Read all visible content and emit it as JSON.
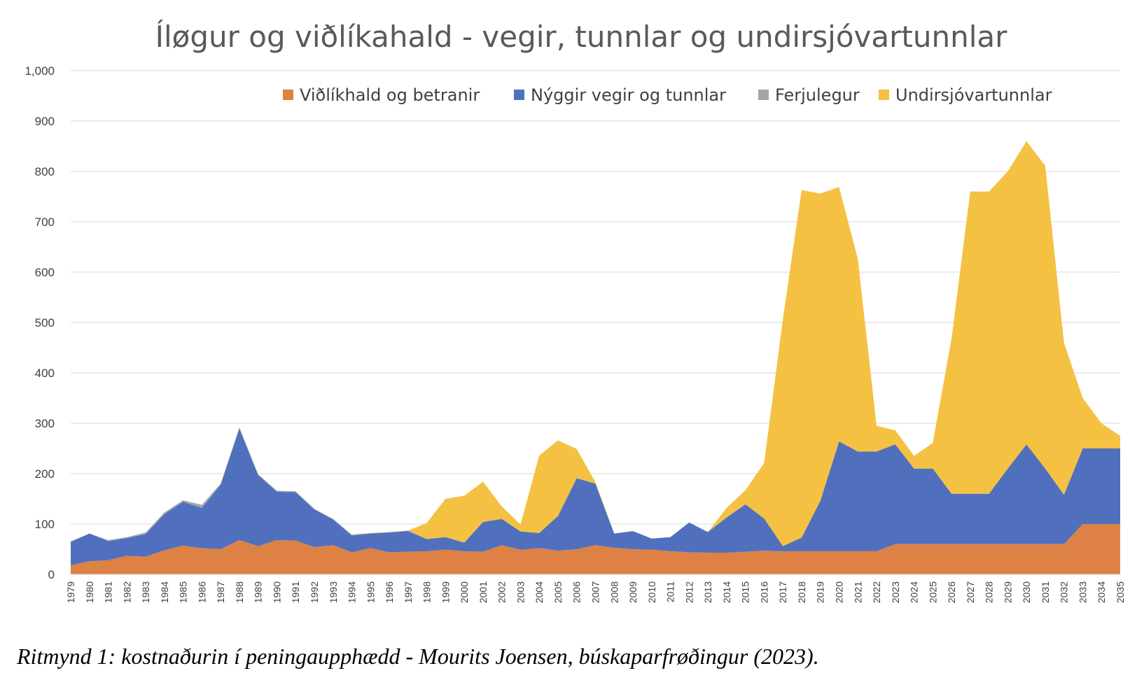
{
  "chart_data": {
    "type": "area",
    "stacked": true,
    "title": "Íløgur og viðlíkahald - vegir, tunnlar og undirsjóvartunnlar",
    "x": [
      1979,
      1980,
      1981,
      1982,
      1983,
      1984,
      1985,
      1986,
      1987,
      1988,
      1989,
      1990,
      1991,
      1992,
      1993,
      1994,
      1995,
      1996,
      1997,
      1998,
      1999,
      2000,
      2001,
      2002,
      2003,
      2004,
      2005,
      2006,
      2007,
      2008,
      2009,
      2010,
      2011,
      2012,
      2013,
      2014,
      2015,
      2016,
      2017,
      2018,
      2019,
      2020,
      2021,
      2022,
      2023,
      2024,
      2025,
      2026,
      2027,
      2028,
      2029,
      2030,
      2031,
      2032,
      2033,
      2034,
      2035
    ],
    "ylim": [
      0,
      1000
    ],
    "yticks": [
      "0",
      "100",
      "200",
      "300",
      "400",
      "500",
      "600",
      "700",
      "800",
      "900",
      "1,000"
    ],
    "ytick_values": [
      0,
      100,
      200,
      300,
      400,
      500,
      600,
      700,
      800,
      900,
      1000
    ],
    "grid": true,
    "legend_position": "top",
    "series": [
      {
        "name": "Viðlíkhald og betranir",
        "color": "#DD8145",
        "values": [
          18,
          26,
          28,
          37,
          35,
          48,
          57,
          52,
          50,
          68,
          56,
          68,
          67,
          54,
          58,
          44,
          52,
          44,
          45,
          46,
          49,
          46,
          45,
          58,
          49,
          52,
          47,
          50,
          58,
          53,
          50,
          49,
          46,
          44,
          43,
          43,
          45,
          47,
          46,
          46,
          46,
          46,
          46,
          46,
          60,
          60,
          60,
          60,
          60,
          60,
          60,
          60,
          60,
          60,
          100,
          100,
          100
        ]
      },
      {
        "name": "Nýggir vegir og tunnlar",
        "color": "#5070BE",
        "values": [
          47,
          55,
          38,
          35,
          45,
          72,
          87,
          80,
          128,
          221,
          141,
          96,
          96,
          75,
          51,
          33,
          29,
          39,
          41,
          24,
          25,
          17,
          59,
          52,
          36,
          30,
          69,
          141,
          122,
          28,
          36,
          22,
          28,
          59,
          41,
          70,
          94,
          64,
          10,
          27,
          100,
          218,
          198,
          198,
          198,
          150,
          150,
          100,
          100,
          100,
          150,
          198,
          150,
          98,
          150,
          150,
          150
        ]
      },
      {
        "name": "Ferjulegur",
        "color": "#A5A5A5",
        "values": [
          0,
          0,
          2,
          2,
          3,
          3,
          3,
          6,
          2,
          3,
          2,
          2,
          2,
          1,
          1,
          2,
          1,
          1,
          1,
          0,
          0,
          0,
          0,
          0,
          0,
          0,
          0,
          0,
          0,
          0,
          0,
          0,
          0,
          0,
          0,
          0,
          0,
          0,
          0,
          0,
          0,
          0,
          0,
          0,
          0,
          0,
          0,
          0,
          0,
          0,
          0,
          0,
          0,
          0,
          0,
          0,
          0
        ]
      },
      {
        "name": "Undirsjóvartunnlar",
        "color": "#F4C142",
        "values": [
          0,
          0,
          0,
          0,
          0,
          0,
          0,
          0,
          0,
          0,
          0,
          0,
          0,
          0,
          0,
          0,
          0,
          0,
          0,
          32,
          76,
          93,
          80,
          25,
          14,
          154,
          150,
          58,
          3,
          0,
          0,
          0,
          0,
          0,
          0,
          19,
          28,
          110,
          450,
          690,
          610,
          505,
          382,
          51,
          28,
          25,
          51,
          308,
          600,
          600,
          590,
          602,
          601,
          302,
          100,
          50,
          25
        ]
      }
    ]
  },
  "caption": "Ritmynd 1: kostnaðurin í peningaupphædd - Mourits Joensen, búskaparfrøðingur (2023)."
}
